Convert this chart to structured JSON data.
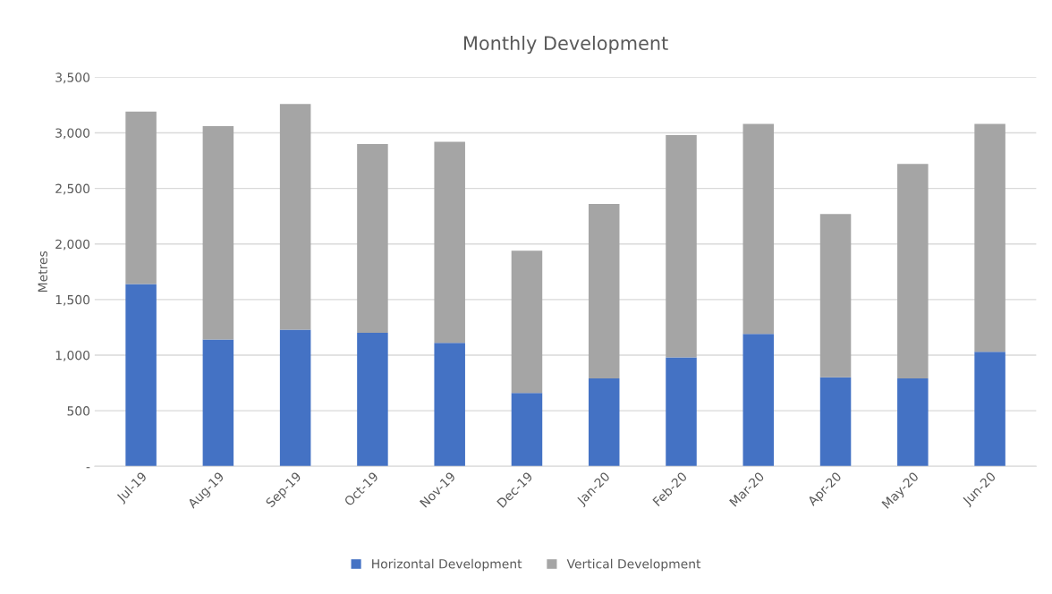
{
  "chart_data": {
    "type": "bar",
    "title": "Monthly Development",
    "ylabel": "Metres",
    "stacked": true,
    "categories": [
      "Jul-19",
      "Aug-19",
      "Sep-19",
      "Oct-19",
      "Nov-19",
      "Dec-19",
      "Jan-20",
      "Feb-20",
      "Mar-20",
      "Apr-20",
      "May-20",
      "Jun-20"
    ],
    "series": [
      {
        "name": "Horizontal Development",
        "color": "#4472c4",
        "values": [
          1640,
          1140,
          1230,
          1200,
          1110,
          660,
          790,
          980,
          1190,
          800,
          790,
          1030
        ]
      },
      {
        "name": "Vertical Development",
        "color": "#a5a5a5",
        "values": [
          1550,
          1920,
          2030,
          1700,
          1810,
          1280,
          1570,
          2000,
          1890,
          1470,
          1930,
          2050
        ]
      }
    ],
    "ylim": [
      0,
      3500
    ],
    "yticks": [
      {
        "value": 0,
        "label": "-"
      },
      {
        "value": 500,
        "label": "500"
      },
      {
        "value": 1000,
        "label": "1,000"
      },
      {
        "value": 1500,
        "label": "1,500"
      },
      {
        "value": 2000,
        "label": "2,000"
      },
      {
        "value": 2500,
        "label": "2,500"
      },
      {
        "value": 3000,
        "label": "3,000"
      },
      {
        "value": 3500,
        "label": "3,500"
      }
    ],
    "grid": "y",
    "legend": "bottom"
  }
}
